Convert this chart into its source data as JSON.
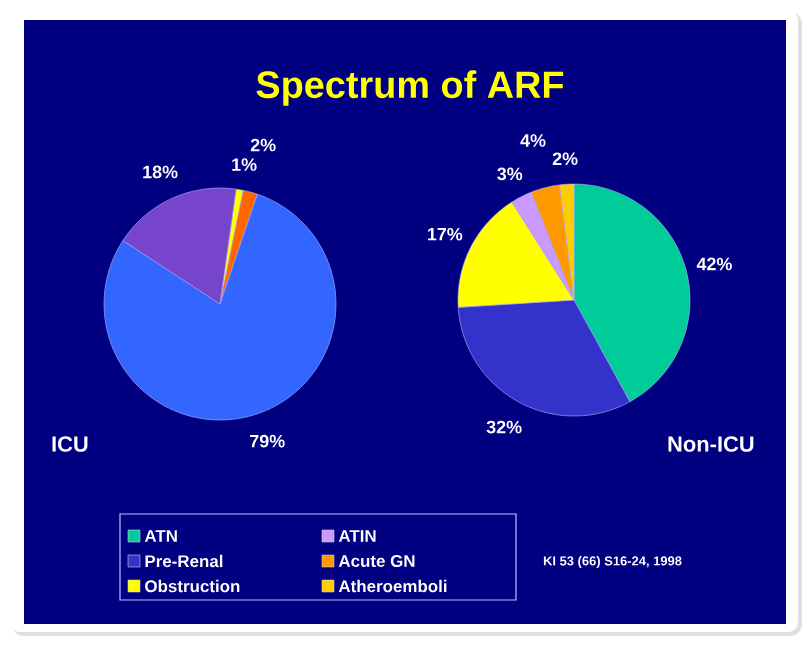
{
  "chart_data": [
    {
      "type": "pie",
      "title": "Spectrum of ARF",
      "subtitle": "ICU",
      "categories": [
        null,
        null,
        null,
        null
      ],
      "values": [
        1,
        2,
        79,
        18
      ],
      "colors": [
        "#ffff00",
        "#ff6600",
        "#3366ff",
        "#7744cc"
      ],
      "value_labels": [
        "1%",
        "2%",
        "79%",
        "18%"
      ]
    },
    {
      "type": "pie",
      "subtitle": "Non-ICU",
      "categories": [
        "ATN",
        "Pre-Renal",
        "Obstruction",
        "ATIN",
        "Acute GN",
        "Atheroemboli"
      ],
      "values": [
        42,
        32,
        17,
        3,
        4,
        2
      ],
      "colors": [
        "#00cc99",
        "#3333cc",
        "#ffff00",
        "#cc99ff",
        "#ff9900",
        "#ffcc00"
      ],
      "value_labels": [
        "42%",
        "32%",
        "17%",
        "3%",
        "4%",
        "2%"
      ],
      "legend": "bottom",
      "annotations": [
        "KI 53 (66) S16-24, 1998"
      ]
    }
  ]
}
